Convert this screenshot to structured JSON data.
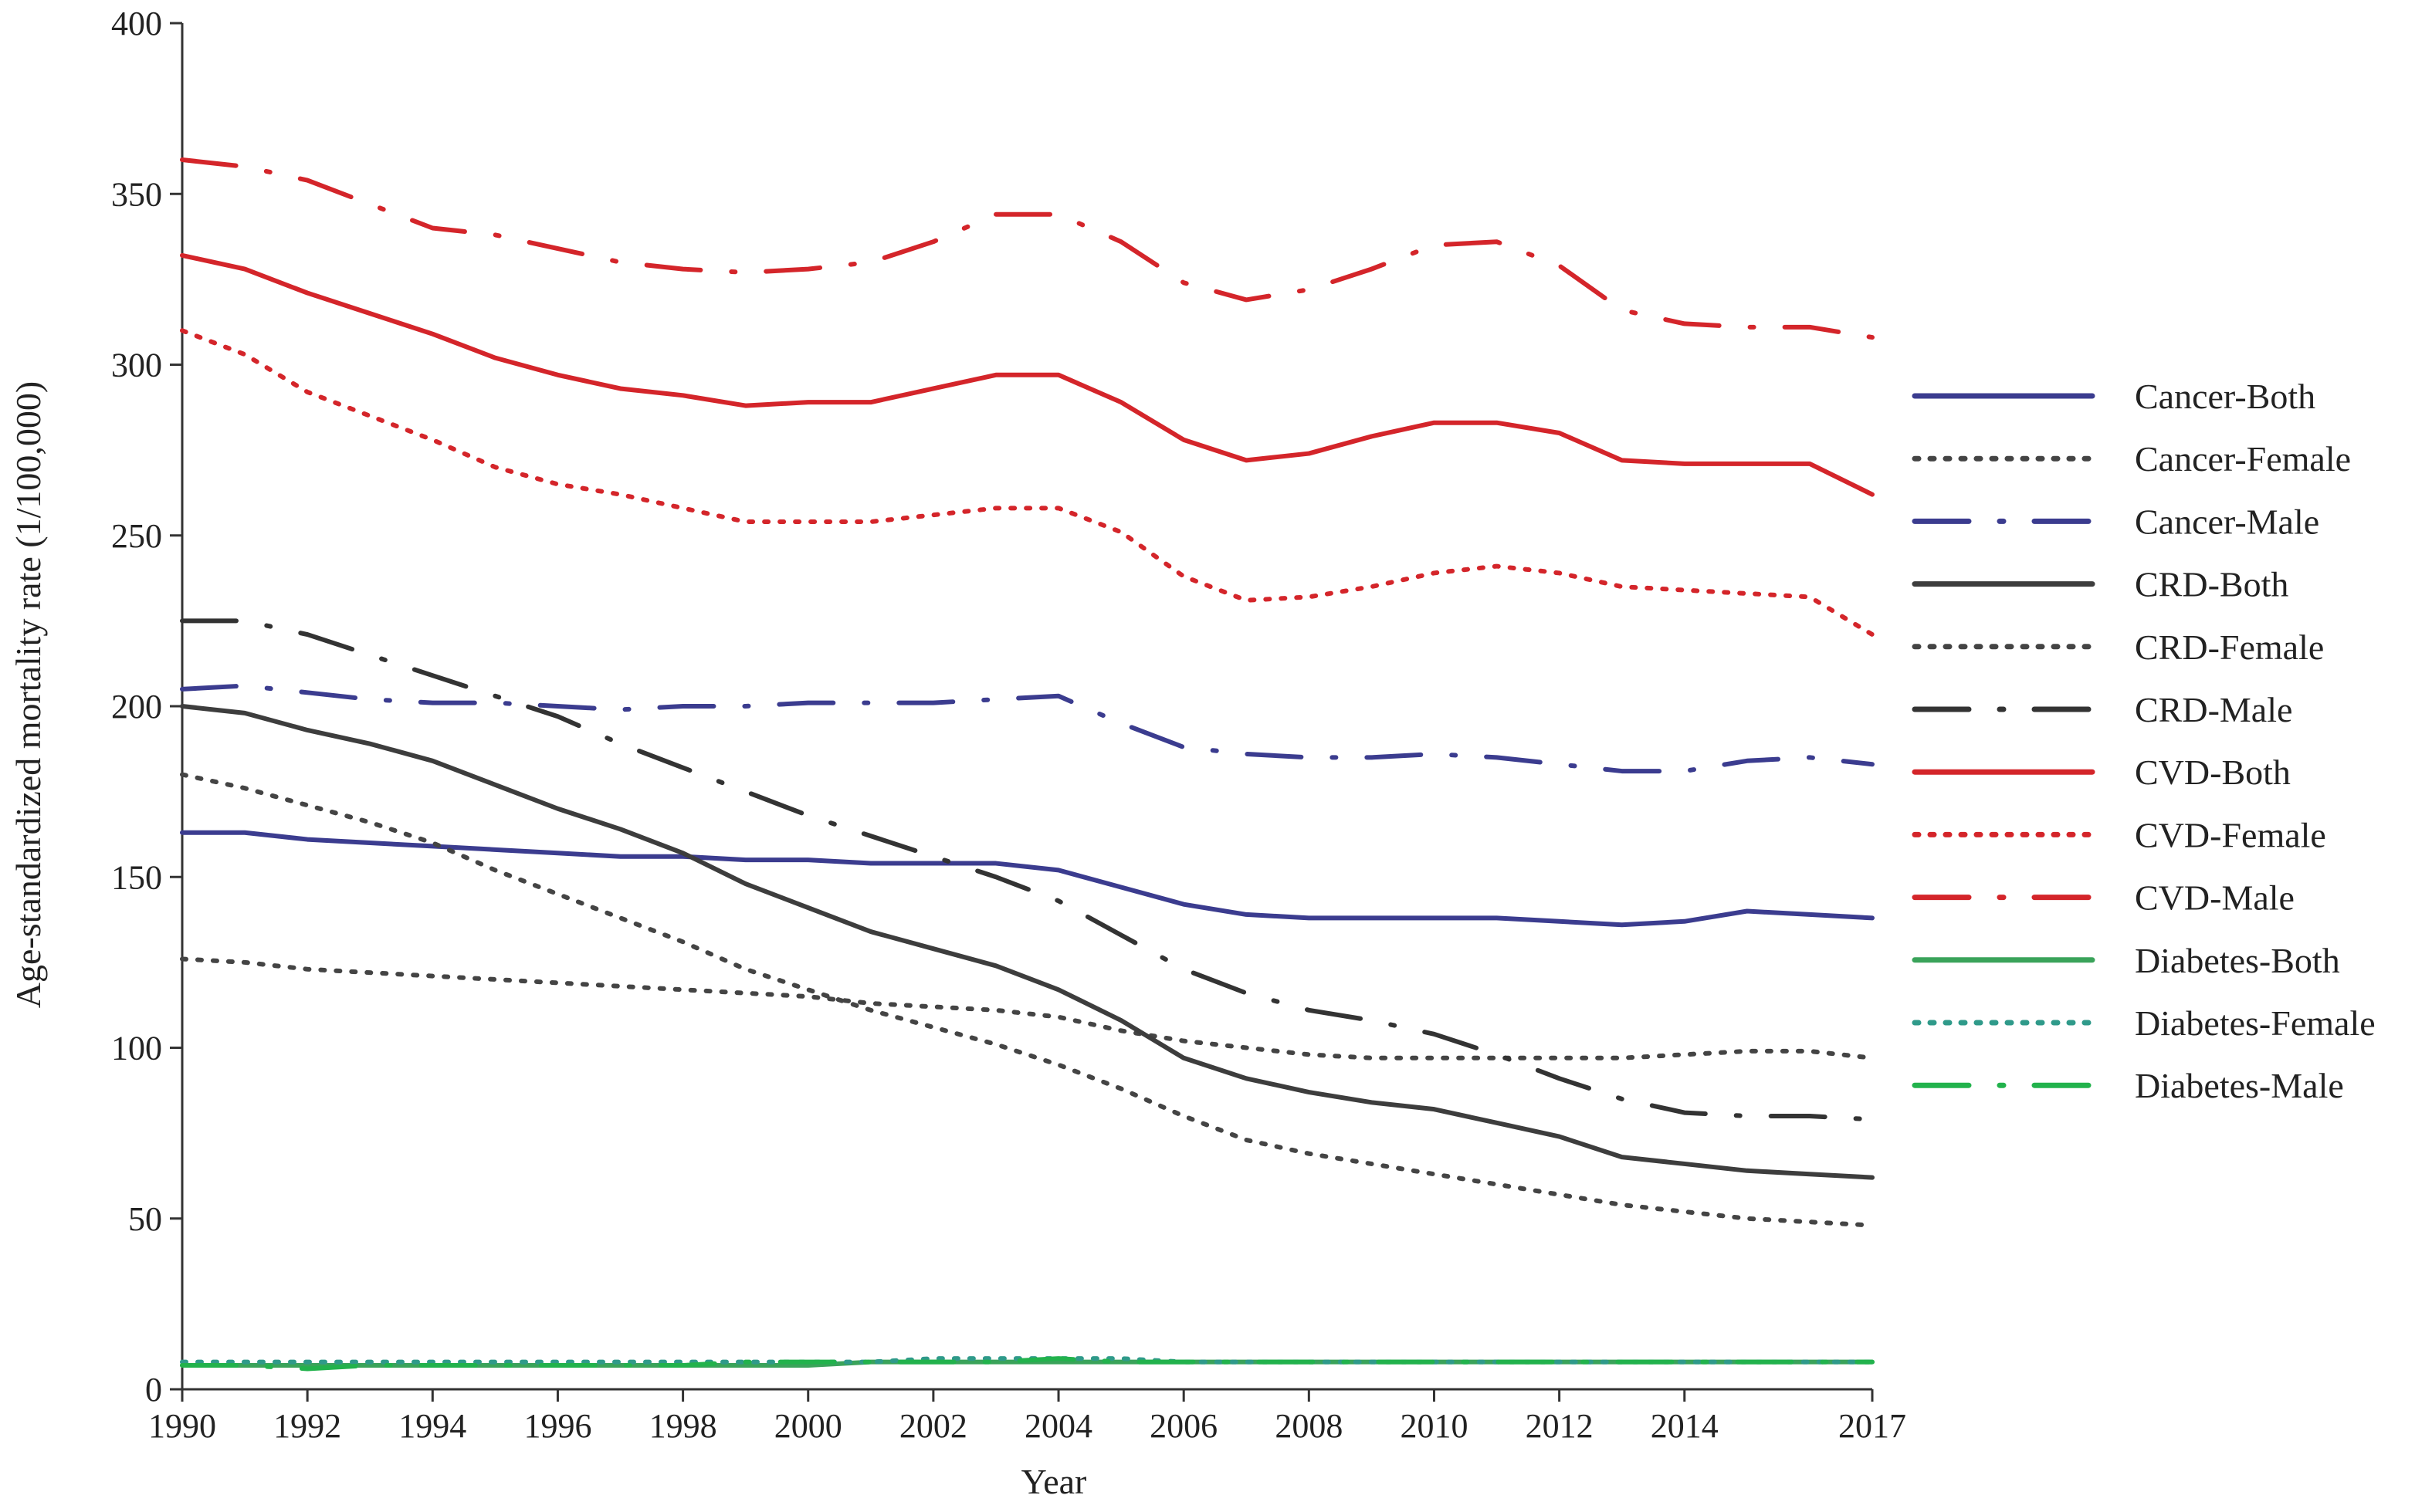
{
  "chart_data": {
    "type": "line",
    "title": "",
    "xlabel": "Year",
    "ylabel": "Age-standardized mortality rate (1/100,000)",
    "ylim": [
      0,
      400
    ],
    "xlim": [
      1990,
      2017
    ],
    "grid": false,
    "legend_position": "right",
    "x_ticks": [
      "1990",
      "1992",
      "1994",
      "1996",
      "1998",
      "2000",
      "2002",
      "2004",
      "2006",
      "2008",
      "2010",
      "2012",
      "2014",
      "2017"
    ],
    "y_ticks": [
      "0",
      "50",
      "100",
      "150",
      "200",
      "250",
      "300",
      "350",
      "400"
    ],
    "x": [
      1990,
      1991,
      1992,
      1993,
      1994,
      1995,
      1996,
      1997,
      1998,
      1999,
      2000,
      2001,
      2002,
      2003,
      2004,
      2005,
      2006,
      2007,
      2008,
      2009,
      2010,
      2011,
      2012,
      2013,
      2014,
      2015,
      2016,
      2017
    ],
    "series": [
      {
        "name": "Cancer-Both",
        "color": "#3b3c8f",
        "style": "solid",
        "values": [
          163,
          163,
          161,
          160,
          159,
          158,
          157,
          156,
          156,
          155,
          155,
          154,
          154,
          154,
          152,
          147,
          142,
          139,
          138,
          138,
          138,
          138,
          137,
          136,
          137,
          140,
          139,
          138
        ]
      },
      {
        "name": "Cancer-Female",
        "color": "#444444",
        "style": "dotted",
        "values": [
          126,
          125,
          123,
          122,
          121,
          120,
          119,
          118,
          117,
          116,
          115,
          113,
          112,
          111,
          109,
          105,
          102,
          100,
          98,
          97,
          97,
          97,
          97,
          97,
          98,
          99,
          99,
          97
        ]
      },
      {
        "name": "Cancer-Male",
        "color": "#3b3c8f",
        "style": "dashdot",
        "values": [
          205,
          206,
          204,
          202,
          201,
          201,
          200,
          199,
          200,
          200,
          201,
          201,
          201,
          202,
          203,
          195,
          188,
          186,
          185,
          185,
          186,
          185,
          183,
          181,
          181,
          184,
          185,
          183
        ]
      },
      {
        "name": "CRD-Both",
        "color": "#3d3d3d",
        "style": "solid",
        "values": [
          200,
          198,
          193,
          189,
          184,
          177,
          170,
          164,
          157,
          148,
          141,
          134,
          129,
          124,
          117,
          108,
          97,
          91,
          87,
          84,
          82,
          78,
          74,
          68,
          66,
          64,
          63,
          62
        ]
      },
      {
        "name": "CRD-Female",
        "color": "#444444",
        "style": "dotted",
        "values": [
          180,
          176,
          171,
          166,
          160,
          152,
          145,
          138,
          131,
          123,
          117,
          111,
          106,
          101,
          95,
          88,
          80,
          73,
          69,
          66,
          63,
          60,
          57,
          54,
          52,
          50,
          49,
          48
        ]
      },
      {
        "name": "CRD-Male",
        "color": "#333333",
        "style": "dashdot",
        "values": [
          225,
          225,
          221,
          215,
          209,
          203,
          197,
          189,
          182,
          175,
          168,
          162,
          156,
          150,
          143,
          133,
          123,
          116,
          111,
          108,
          104,
          98,
          91,
          85,
          81,
          80,
          80,
          79
        ]
      },
      {
        "name": "CVD-Both",
        "color": "#d4252a",
        "style": "solid",
        "values": [
          332,
          328,
          321,
          315,
          309,
          302,
          297,
          293,
          291,
          288,
          289,
          289,
          293,
          297,
          297,
          289,
          278,
          272,
          274,
          279,
          283,
          283,
          280,
          272,
          271,
          271,
          271,
          262
        ]
      },
      {
        "name": "CVD-Female",
        "color": "#d4252a",
        "style": "dotted",
        "values": [
          310,
          303,
          292,
          285,
          278,
          270,
          265,
          262,
          258,
          254,
          254,
          254,
          256,
          258,
          258,
          251,
          238,
          231,
          232,
          235,
          239,
          241,
          239,
          235,
          234,
          233,
          232,
          221
        ]
      },
      {
        "name": "CVD-Male",
        "color": "#d4252a",
        "style": "dashdot",
        "values": [
          360,
          358,
          354,
          347,
          340,
          338,
          334,
          330,
          328,
          327,
          328,
          330,
          336,
          344,
          344,
          336,
          324,
          319,
          322,
          328,
          335,
          336,
          329,
          316,
          312,
          311,
          311,
          308
        ]
      },
      {
        "name": "Diabetes-Both",
        "color": "#3aa35a",
        "style": "solid",
        "values": [
          7,
          7,
          7,
          7,
          7,
          7,
          7,
          7,
          7,
          7,
          7,
          8,
          8,
          8,
          8,
          8,
          8,
          8,
          8,
          8,
          8,
          8,
          8,
          8,
          8,
          8,
          8,
          8
        ]
      },
      {
        "name": "Diabetes-Female",
        "color": "#2f9a8a",
        "style": "dotted",
        "values": [
          8,
          8,
          8,
          8,
          8,
          8,
          8,
          8,
          8,
          8,
          8,
          8,
          9,
          9,
          9,
          9,
          8,
          8,
          8,
          8,
          8,
          8,
          8,
          8,
          8,
          8,
          8,
          8
        ]
      },
      {
        "name": "Diabetes-Male",
        "color": "#22b24c",
        "style": "dashdot",
        "values": [
          7,
          7,
          6,
          7,
          7,
          7,
          7,
          7,
          7,
          8,
          8,
          8,
          8,
          8,
          9,
          8,
          8,
          8,
          8,
          8,
          8,
          8,
          8,
          8,
          8,
          8,
          8,
          8
        ]
      }
    ]
  }
}
